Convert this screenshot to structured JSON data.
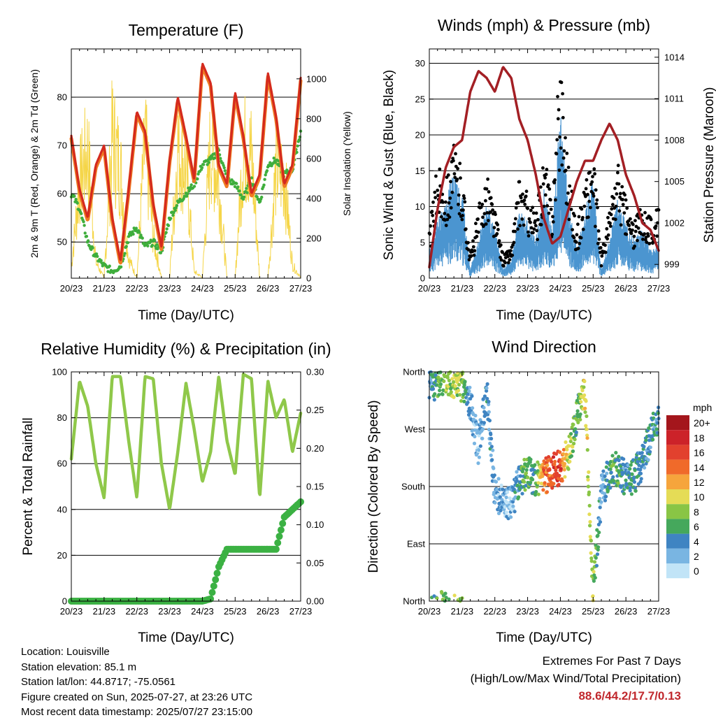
{
  "days": [
    "20/23",
    "21/23",
    "22/23",
    "23/23",
    "24/23",
    "25/23",
    "26/23",
    "27/23"
  ],
  "xlabel": "Time (Day/UTC)",
  "colors": {
    "red": "#d42a1e",
    "orange": "#ef7a22",
    "green": "#3fae3c",
    "yellow": "#f5d547",
    "blue": "#4b95d0",
    "black": "#000000",
    "maroon": "#a31f24",
    "rh": "#8fc84a",
    "precip": "#3bb143"
  },
  "panels": {
    "temperature": {
      "title": "Temperature (F)",
      "ylabel_left": "2m & 9m T (Red, Orange) & 2m Td (Green)",
      "ylabel_right": "Solar Insolation (Yellow)",
      "left_ticks": [
        "50",
        "60",
        "70",
        "80"
      ],
      "right_ticks": [
        "0",
        "200",
        "400",
        "600",
        "800",
        "1000"
      ]
    },
    "winds": {
      "title": "Winds (mph) & Pressure (mb)",
      "ylabel_left": "Sonic Wind & Gust (Blue, Black)",
      "ylabel_right": "Station Pressure (Maroon)",
      "left_ticks": [
        "0",
        "5",
        "10",
        "15",
        "20",
        "25",
        "30"
      ],
      "right_ticks": [
        "999",
        "1002",
        "1005",
        "1008",
        "1011",
        "1014"
      ]
    },
    "humidity": {
      "title": "Relative Humidity (%) & Precipitation (in)",
      "ylabel_left": "Percent & Total Rainfall",
      "left_ticks": [
        "0",
        "20",
        "40",
        "60",
        "80",
        "100"
      ],
      "right_ticks": [
        "0.00",
        "0.05",
        "0.10",
        "0.15",
        "0.20",
        "0.25",
        "0.30"
      ]
    },
    "direction": {
      "title": "Wind Direction",
      "ylabel_left": "Direction (Colored By Speed)",
      "left_ticks": [
        "North",
        "East",
        "South",
        "West",
        "North"
      ],
      "legend_title": "mph",
      "legend_labels": [
        "20+",
        "18",
        "16",
        "14",
        "12",
        "10",
        "8",
        "6",
        "4",
        "2",
        "0"
      ],
      "legend_colors": [
        "#a4161c",
        "#cc2229",
        "#e2412e",
        "#f06a2a",
        "#f6a53c",
        "#e5dc56",
        "#89c545",
        "#45a85c",
        "#3f84c2",
        "#79b5e2",
        "#c1e4f7"
      ]
    }
  },
  "info": {
    "location": "Location: Louisville",
    "elevation": "Station elevation: 85.1 m",
    "latlon": "Station lat/lon: 44.8717; -75.0561",
    "created": "Figure created on Sun, 2025-07-27, at 23:26 UTC",
    "timestamp": "Most recent data timestamp: 2025/07/27 23:15:00"
  },
  "extremes": {
    "title": "Extremes For Past 7 Days",
    "subtitle": "(High/Low/Max Wind/Total Precipitation)",
    "values": "88.6/44.2/17.7/0.13"
  },
  "chart_data": [
    {
      "type": "line",
      "title": "Temperature (F)",
      "xlabel": "Time (Day/UTC)",
      "x": [
        0,
        0.25,
        0.5,
        0.75,
        1,
        1.25,
        1.5,
        1.75,
        2,
        2.25,
        2.5,
        2.75,
        3,
        3.25,
        3.5,
        3.75,
        4,
        4.25,
        4.5,
        4.75,
        5,
        5.25,
        5.5,
        5.75,
        6,
        6.25,
        6.5,
        6.75,
        7
      ],
      "ylim": [
        42.5,
        90
      ],
      "y2lim": [
        0,
        1150
      ],
      "series": [
        {
          "name": "2m & 9m T (Red, Orange)",
          "axis": "left",
          "values": [
            72,
            61,
            55,
            66,
            70,
            55,
            46,
            61,
            77,
            73,
            58,
            49,
            67,
            80,
            72,
            63,
            87,
            83,
            66,
            62,
            81,
            72,
            60,
            64,
            85,
            76,
            62,
            66,
            84
          ]
        },
        {
          "name": "2m Td (Green)",
          "axis": "left",
          "values": [
            60,
            57,
            50,
            47,
            45,
            44,
            45,
            51,
            53,
            49,
            50,
            48,
            55,
            58,
            60,
            62,
            66,
            67,
            69,
            63,
            62,
            59,
            63,
            58,
            66,
            67,
            64,
            65,
            73
          ]
        },
        {
          "name": "Solar Insolation (Yellow)",
          "axis": "right",
          "values": [
            80,
            700,
            950,
            120,
            0,
            1050,
            800,
            150,
            0,
            1020,
            300,
            0,
            0,
            980,
            800,
            50,
            0,
            1000,
            700,
            0,
            0,
            960,
            900,
            0,
            0,
            820,
            750,
            100,
            0
          ]
        }
      ]
    },
    {
      "type": "line",
      "title": "Winds (mph) & Pressure (mb)",
      "xlabel": "Time (Day/UTC)",
      "x": [
        0,
        0.25,
        0.5,
        0.75,
        1,
        1.25,
        1.5,
        1.75,
        2,
        2.25,
        2.5,
        2.75,
        3,
        3.25,
        3.5,
        3.75,
        4,
        4.25,
        4.5,
        4.75,
        5,
        5.25,
        5.5,
        5.75,
        6,
        6.25,
        6.5,
        6.75,
        7
      ],
      "ylim": [
        0,
        32
      ],
      "y2lim": [
        998,
        1014.6
      ],
      "series": [
        {
          "name": "Sonic Wind (Blue)",
          "axis": "left",
          "values": [
            3,
            6,
            8,
            11,
            9,
            1,
            4,
            8,
            5,
            1,
            2,
            7,
            6,
            4,
            9,
            5,
            17,
            8,
            3,
            7,
            10,
            1,
            4,
            8,
            6,
            4,
            5,
            3,
            4
          ]
        },
        {
          "name": "Gust (Black)",
          "axis": "left",
          "values": [
            6,
            15,
            13,
            17,
            14,
            3,
            9,
            14,
            9,
            3,
            4,
            13,
            11,
            8,
            16,
            10,
            30,
            15,
            6,
            13,
            16,
            3,
            9,
            15,
            10,
            7,
            10,
            8,
            9
          ]
        },
        {
          "name": "Station Pressure (Maroon)",
          "axis": "right",
          "values": [
            998.8,
            1003,
            1006,
            1007.5,
            1008,
            1011.5,
            1013,
            1012.5,
            1011.5,
            1013.3,
            1012.5,
            1009.5,
            1008,
            1005.5,
            1002.3,
            1000.5,
            1001,
            1003,
            1005,
            1006.5,
            1006.5,
            1008,
            1009.2,
            1008,
            1005.5,
            1004,
            1002,
            1001.5,
            1000
          ]
        }
      ]
    },
    {
      "type": "line",
      "title": "Relative Humidity (%) & Precipitation (in)",
      "xlabel": "Time (Day/UTC)",
      "x": [
        0,
        0.25,
        0.5,
        0.75,
        1,
        1.25,
        1.5,
        1.75,
        2,
        2.25,
        2.5,
        2.75,
        3,
        3.25,
        3.5,
        3.75,
        4,
        4.25,
        4.5,
        4.75,
        5,
        5.25,
        5.5,
        5.75,
        6,
        6.25,
        6.5,
        6.75,
        7
      ],
      "ylim": [
        0,
        100
      ],
      "y2lim": [
        0,
        0.3
      ],
      "series": [
        {
          "name": "Relative Humidity",
          "axis": "left",
          "values": [
            62,
            96,
            85,
            60,
            45,
            98,
            98,
            70,
            45,
            98,
            97,
            60,
            40,
            65,
            95,
            75,
            52,
            65,
            98,
            70,
            55,
            99,
            97,
            45,
            96,
            80,
            88,
            65,
            82
          ]
        },
        {
          "name": "Total Precipitation",
          "axis": "right",
          "values": [
            0,
            0,
            0,
            0,
            0,
            0,
            0,
            0,
            0,
            0,
            0,
            0,
            0,
            0,
            0,
            0,
            0.0,
            0.003,
            0.045,
            0.068,
            0.068,
            0.068,
            0.068,
            0.068,
            0.068,
            0.068,
            0.11,
            0.12,
            0.13
          ]
        }
      ]
    },
    {
      "type": "scatter",
      "title": "Wind Direction",
      "xlabel": "Time (Day/UTC)",
      "ylabel": "Direction (Colored By Speed)",
      "x": [
        0,
        0.25,
        0.5,
        0.75,
        1,
        1.25,
        1.5,
        1.75,
        2,
        2.25,
        2.5,
        2.75,
        3,
        3.25,
        3.5,
        3.75,
        4,
        4.25,
        4.5,
        4.75,
        5,
        5.25,
        5.5,
        5.75,
        6,
        6.25,
        6.5,
        6.75,
        7
      ],
      "direction_deg": [
        340,
        345,
        350,
        345,
        340,
        310,
        240,
        330,
        170,
        160,
        150,
        190,
        200,
        190,
        195,
        205,
        210,
        230,
        290,
        330,
        10,
        170,
        200,
        210,
        190,
        195,
        220,
        260,
        290
      ],
      "speed_mph": [
        3,
        6,
        8,
        9,
        8,
        3,
        2,
        4,
        3,
        2,
        2,
        5,
        7,
        5,
        14,
        15,
        16,
        9,
        6,
        10,
        9,
        2,
        5,
        6,
        4,
        5,
        4,
        4,
        4
      ],
      "ylim": [
        0,
        360
      ],
      "legend_title": "mph"
    }
  ]
}
